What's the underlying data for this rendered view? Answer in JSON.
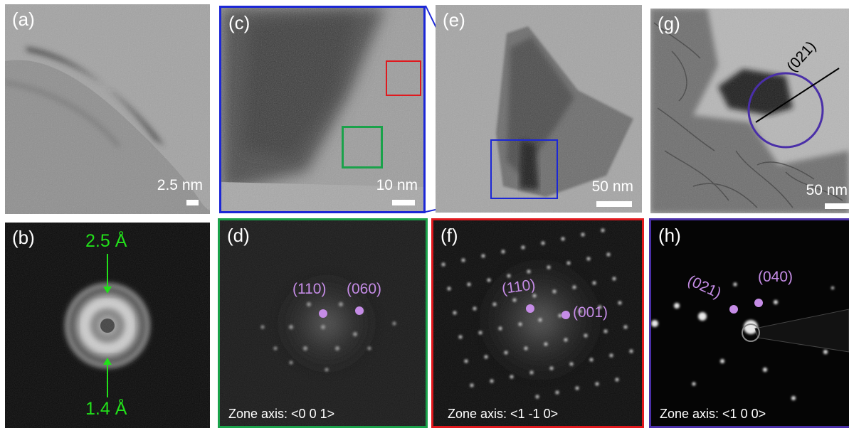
{
  "colors": {
    "green_frame": "#1aa24a",
    "red_frame": "#e0191e",
    "blue_frame": "#1c27d6",
    "purple_frame": "#4a2fa8",
    "marker": "#c58ce6",
    "d_spacing": "#22e01a"
  },
  "panels": {
    "a": {
      "label": "(a)",
      "scale": "2.5 nm"
    },
    "b": {
      "label": "(b)",
      "top_spacing": "2.5 Å",
      "bottom_spacing": "1.4 Å"
    },
    "c": {
      "label": "(c)",
      "scale": "10 nm"
    },
    "d": {
      "label": "(d)",
      "spot1": "(110)",
      "spot2": "(060)",
      "zone": "Zone axis: <0 0 1>"
    },
    "e": {
      "label": "(e)",
      "scale": "50 nm"
    },
    "f": {
      "label": "(f)",
      "spot1": "(110)",
      "spot2": "(001)",
      "zone": "Zone axis: <1 -1 0>"
    },
    "g": {
      "label": "(g)",
      "direction": "(021)",
      "scale": "50 nm"
    },
    "h": {
      "label": "(h)",
      "spot1": "(021)",
      "spot2": "(040)",
      "zone": "Zone axis: <1 0 0>"
    }
  }
}
